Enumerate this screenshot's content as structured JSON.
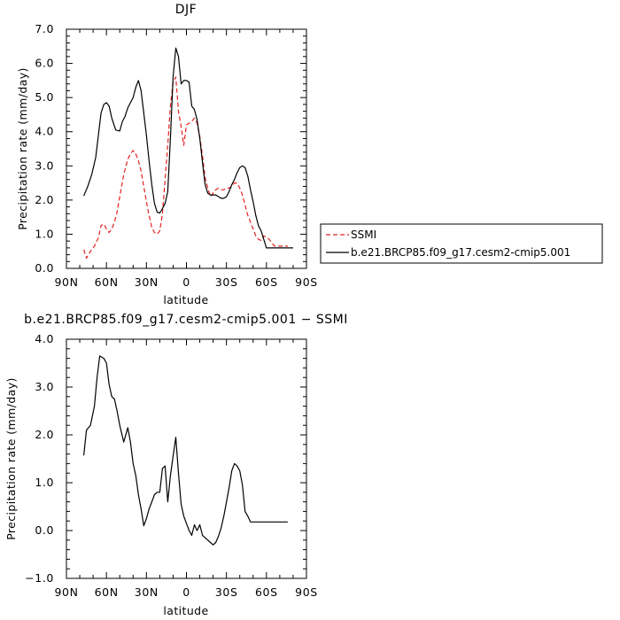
{
  "chart_data": [
    {
      "type": "line",
      "title": "DJF",
      "xlabel": "latitude",
      "ylabel": "Precipitation rate (mm/day)",
      "xlim": [
        90,
        -90
      ],
      "ylim": [
        0.0,
        7.0
      ],
      "xticks": [
        90,
        60,
        30,
        0,
        -30,
        -60,
        -90
      ],
      "xtick_labels": [
        "90N",
        "60N",
        "30N",
        "0",
        "30S",
        "60S",
        "90S"
      ],
      "yticks": [
        0,
        1,
        2,
        3,
        4,
        5,
        6,
        7
      ],
      "ytick_labels": [
        "0.0",
        "1.0",
        "2.0",
        "3.0",
        "4.0",
        "5.0",
        "6.0",
        "7.0"
      ],
      "grid": false,
      "legend_position": "right",
      "series": [
        {
          "name": "SSMI",
          "color": "#e32222",
          "dash": "dashed",
          "x": [
            77,
            75,
            72,
            69,
            66,
            64,
            62,
            60,
            58,
            56,
            54,
            52,
            50,
            47,
            44,
            42,
            40,
            38,
            36,
            34,
            32,
            30,
            28,
            26,
            24,
            22,
            20,
            18,
            16,
            14,
            12,
            10,
            8,
            6,
            4,
            2,
            0,
            -2,
            -4,
            -6,
            -8,
            -10,
            -12,
            -14,
            -16,
            -18,
            -20,
            -22,
            -24,
            -26,
            -28,
            -30,
            -32,
            -34,
            -36,
            -38,
            -40,
            -42,
            -44,
            -46,
            -48,
            -50,
            -52,
            -54,
            -56,
            -58,
            -60,
            -62,
            -64,
            -66,
            -68,
            -70,
            -72,
            -74,
            -76
          ],
          "y": [
            0.55,
            0.3,
            0.5,
            0.65,
            0.9,
            1.25,
            1.3,
            1.15,
            1.05,
            1.15,
            1.35,
            1.65,
            2.1,
            2.75,
            3.2,
            3.35,
            3.45,
            3.35,
            3.15,
            2.85,
            2.4,
            1.95,
            1.55,
            1.2,
            1.05,
            1.0,
            1.1,
            1.6,
            2.6,
            3.6,
            4.75,
            5.45,
            5.6,
            4.6,
            4.15,
            3.6,
            4.2,
            4.25,
            4.3,
            4.4,
            4.25,
            3.85,
            3.3,
            2.65,
            2.35,
            2.1,
            2.2,
            2.3,
            2.35,
            2.3,
            2.3,
            2.35,
            2.35,
            2.4,
            2.5,
            2.5,
            2.35,
            2.15,
            1.85,
            1.55,
            1.35,
            1.15,
            0.95,
            0.85,
            0.82,
            0.95,
            0.92,
            0.85,
            0.75,
            0.65,
            0.65,
            0.65,
            0.65,
            0.65,
            0.65
          ]
        },
        {
          "name": "b.e21.BRCP85.f09_g17.cesm2-cmip5.001",
          "color": "#000000",
          "dash": "solid",
          "x": [
            77,
            74,
            71,
            68,
            66,
            64,
            62,
            60,
            58,
            56,
            53,
            50,
            48,
            46,
            44,
            42,
            40,
            38,
            36,
            34,
            32,
            30,
            28,
            26,
            24,
            22,
            20,
            18,
            16,
            14,
            12,
            10,
            8,
            6,
            4,
            2,
            0,
            -2,
            -4,
            -6,
            -8,
            -10,
            -12,
            -14,
            -16,
            -18,
            -20,
            -22,
            -24,
            -26,
            -28,
            -30,
            -32,
            -34,
            -36,
            -38,
            -40,
            -42,
            -44,
            -46,
            -48,
            -50,
            -52,
            -54,
            -56,
            -58,
            -60,
            -62,
            -64,
            -66,
            -68,
            -70,
            -72,
            -74,
            -76,
            -78,
            -80
          ],
          "y": [
            2.12,
            2.4,
            2.75,
            3.25,
            3.9,
            4.55,
            4.8,
            4.85,
            4.75,
            4.4,
            4.05,
            4.02,
            4.3,
            4.45,
            4.7,
            4.85,
            5.0,
            5.3,
            5.5,
            5.2,
            4.55,
            3.9,
            3.15,
            2.45,
            1.9,
            1.65,
            1.62,
            1.75,
            1.9,
            2.25,
            3.8,
            5.6,
            6.45,
            6.2,
            5.4,
            5.5,
            5.5,
            5.45,
            4.75,
            4.65,
            4.35,
            3.8,
            3.1,
            2.45,
            2.2,
            2.15,
            2.15,
            2.15,
            2.1,
            2.05,
            2.05,
            2.1,
            2.25,
            2.45,
            2.6,
            2.8,
            2.95,
            3.0,
            2.95,
            2.7,
            2.3,
            1.95,
            1.55,
            1.25,
            1.1,
            0.85,
            0.6,
            0.6,
            0.6,
            0.6,
            0.6,
            0.6,
            0.6,
            0.6,
            0.6,
            0.6,
            0.6
          ]
        }
      ]
    },
    {
      "type": "line",
      "title": "b.e21.BRCP85.f09_g17.cesm2-cmip5.001 − SSMI",
      "xlabel": "latitude",
      "ylabel": "Precipitation rate (mm/day)",
      "xlim": [
        90,
        -90
      ],
      "ylim": [
        -1.0,
        4.0
      ],
      "xticks": [
        90,
        60,
        30,
        0,
        -30,
        -60,
        -90
      ],
      "xtick_labels": [
        "90N",
        "60N",
        "30N",
        "0",
        "30S",
        "60S",
        "90S"
      ],
      "yticks": [
        -1,
        0,
        1,
        2,
        3,
        4
      ],
      "ytick_labels": [
        "−1.0",
        "0.0",
        "1.0",
        "2.0",
        "3.0",
        "4.0"
      ],
      "grid": false,
      "series": [
        {
          "color": "#000000",
          "dash": "solid",
          "x": [
            77,
            75,
            72,
            69,
            67,
            65,
            62,
            60,
            58,
            56,
            54,
            52,
            50,
            47,
            44,
            42,
            40,
            38,
            36,
            34,
            32,
            30,
            28,
            26,
            24,
            22,
            20,
            18,
            16,
            14,
            12,
            10,
            8,
            6,
            4,
            2,
            0,
            -2,
            -4,
            -6,
            -8,
            -10,
            -12,
            -14,
            -16,
            -18,
            -20,
            -22,
            -24,
            -26,
            -28,
            -30,
            -32,
            -34,
            -36,
            -38,
            -40,
            -42,
            -44,
            -46,
            -48,
            -50,
            -52,
            -54,
            -56,
            -58,
            -60,
            -62,
            -64,
            -66,
            -68,
            -70,
            -72,
            -74,
            -76
          ],
          "y": [
            1.57,
            2.1,
            2.2,
            2.6,
            3.2,
            3.65,
            3.6,
            3.5,
            3.05,
            2.8,
            2.75,
            2.5,
            2.2,
            1.85,
            2.15,
            1.85,
            1.4,
            1.15,
            0.75,
            0.45,
            0.1,
            0.25,
            0.45,
            0.6,
            0.75,
            0.8,
            0.8,
            1.3,
            1.35,
            0.6,
            1.15,
            1.55,
            1.95,
            1.2,
            0.55,
            0.3,
            0.15,
            0.0,
            -0.1,
            0.12,
            0.0,
            0.12,
            -0.1,
            -0.15,
            -0.2,
            -0.25,
            -0.3,
            -0.25,
            -0.12,
            0.05,
            0.3,
            0.6,
            0.9,
            1.25,
            1.4,
            1.35,
            1.25,
            0.95,
            0.4,
            0.3,
            0.18,
            0.18,
            0.18,
            0.18,
            0.18,
            0.18,
            0.18,
            0.18,
            0.18,
            0.18,
            0.18,
            0.18,
            0.18,
            0.18,
            0.18
          ]
        }
      ]
    }
  ]
}
